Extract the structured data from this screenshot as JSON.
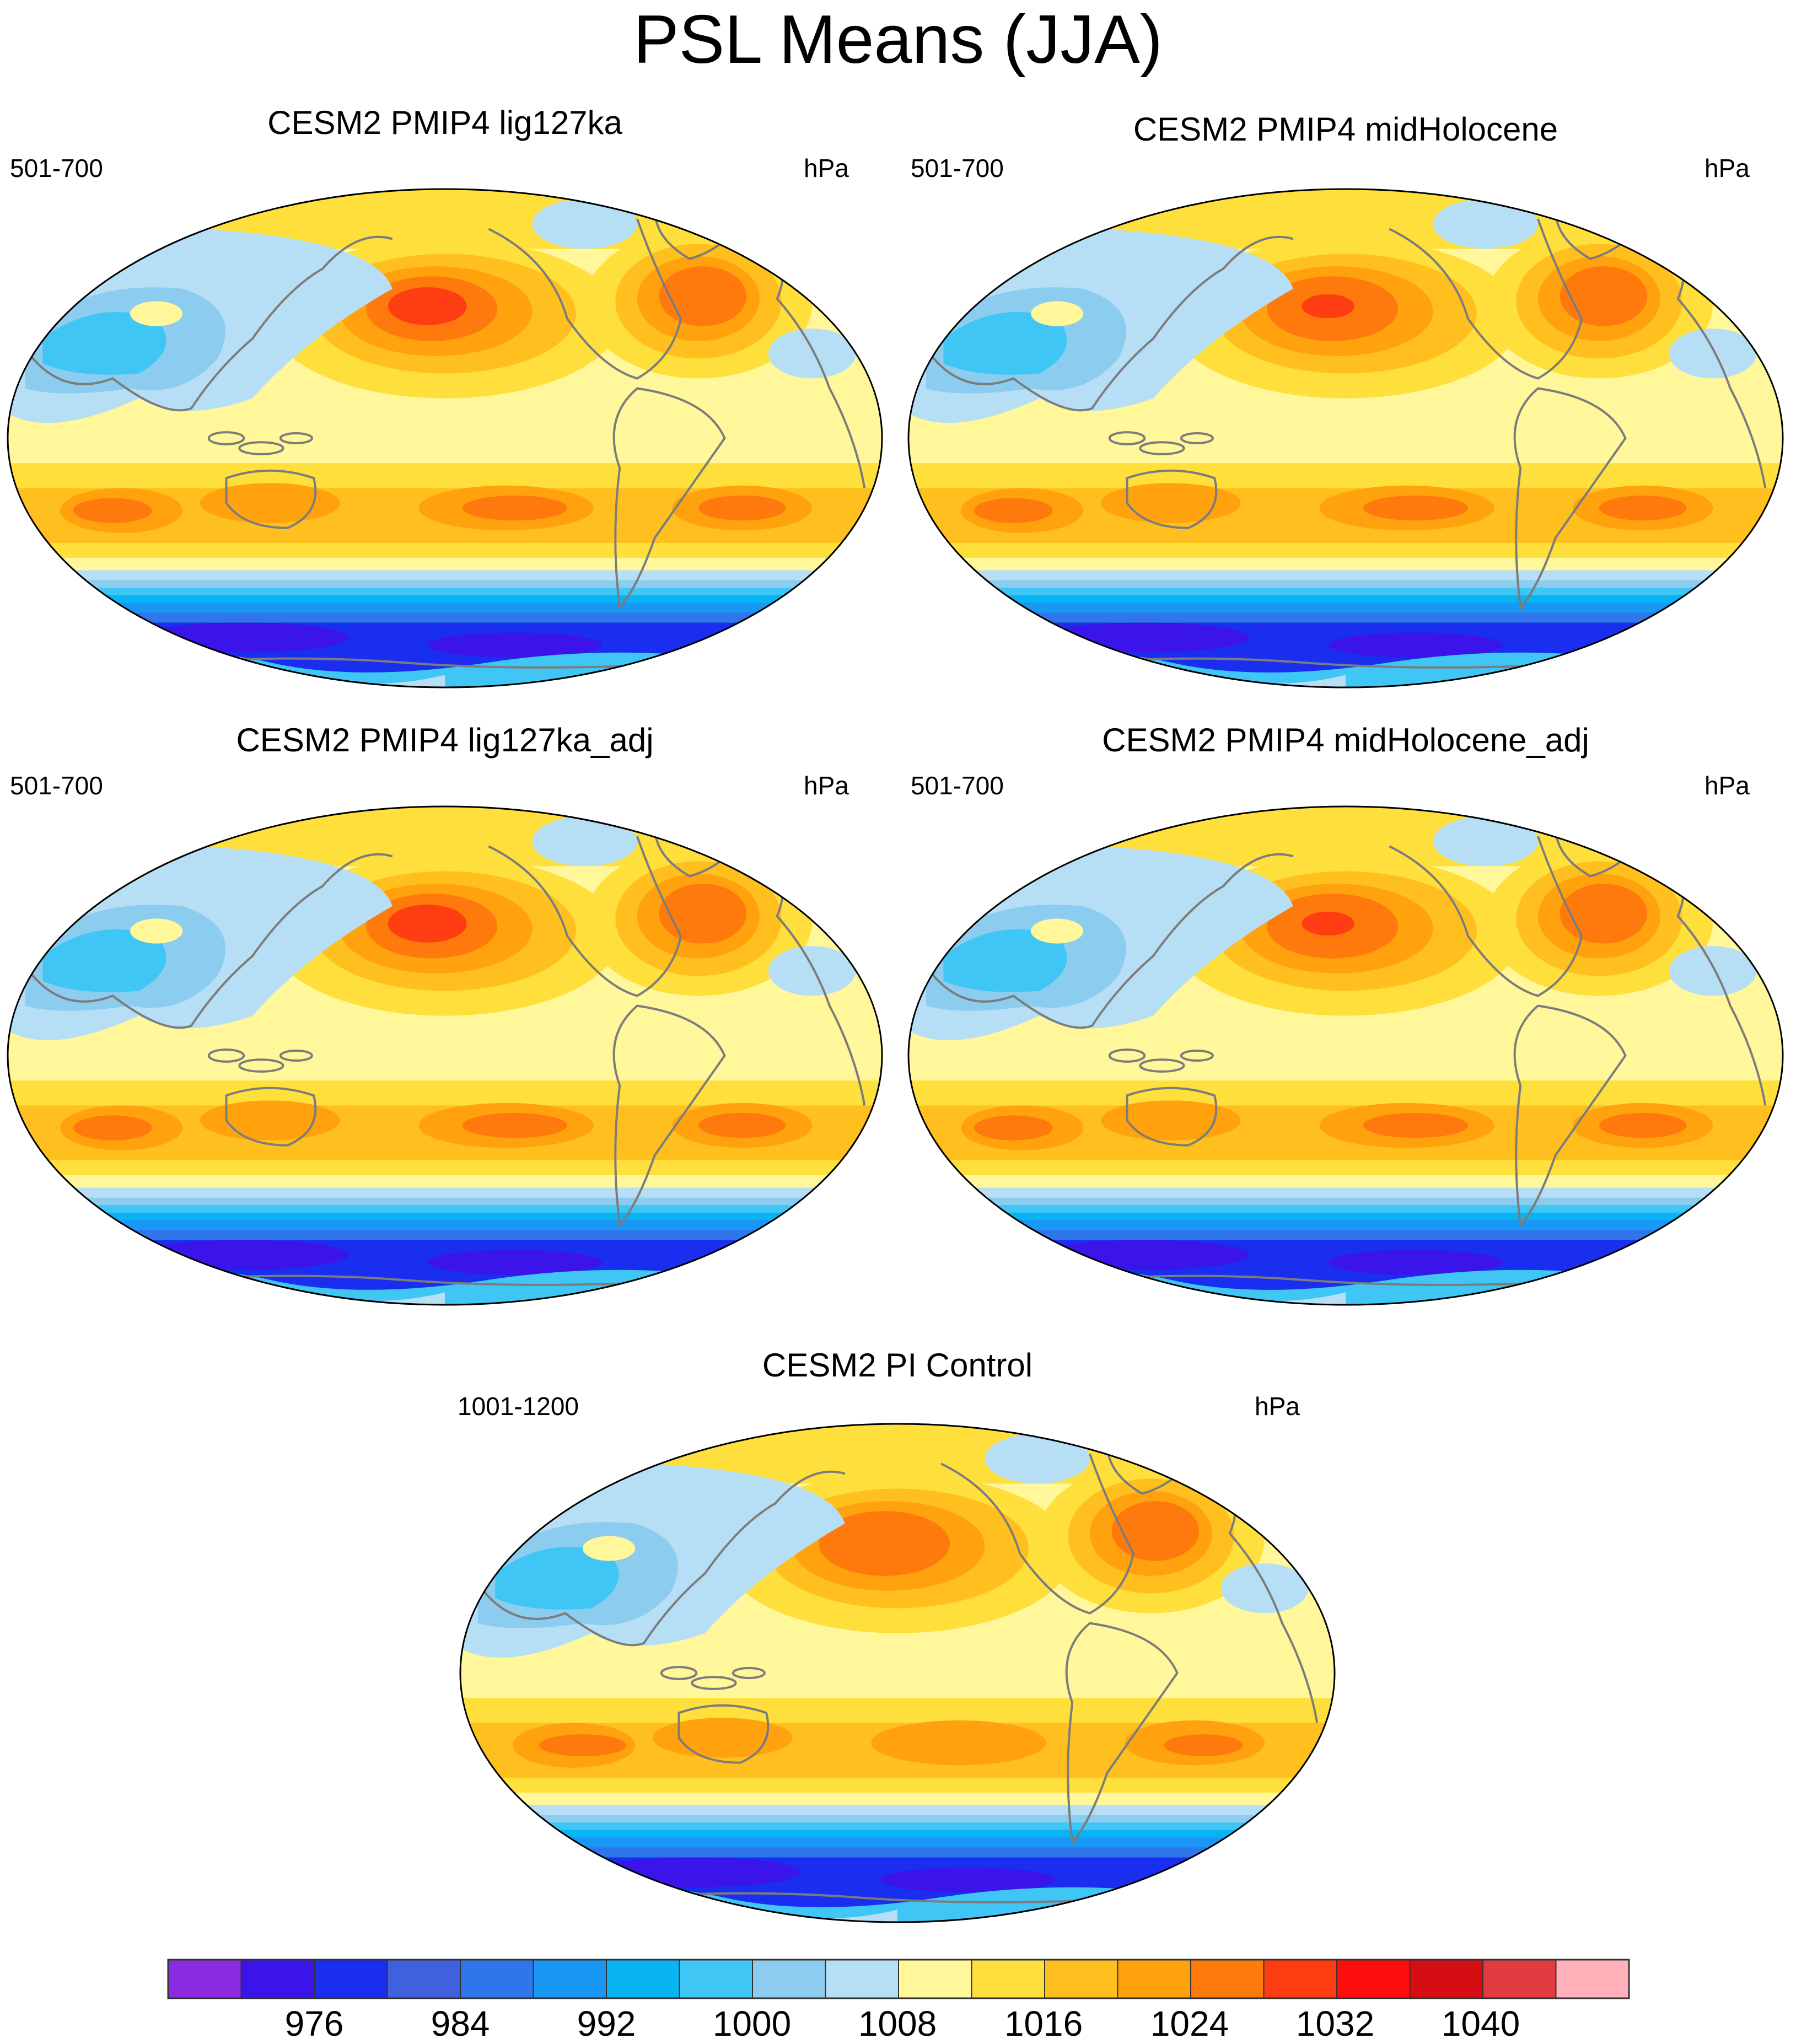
{
  "title": "PSL Means (JJA)",
  "panels": [
    {
      "title": "CESM2 PMIP4 lig127ka",
      "years": "501-700",
      "units": "hPa"
    },
    {
      "title": "CESM2 PMIP4 midHolocene",
      "years": "501-700",
      "units": "hPa"
    },
    {
      "title": "CESM2 PMIP4 lig127ka_adj",
      "years": "501-700",
      "units": "hPa"
    },
    {
      "title": "CESM2 PMIP4 midHolocene_adj",
      "years": "501-700",
      "units": "hPa"
    },
    {
      "title": "CESM2 PI Control",
      "years": "1001-1200",
      "units": "hPa"
    }
  ],
  "colorbar": {
    "colors": [
      "#8a2be2",
      "#3a14e8",
      "#1a2ef0",
      "#3f61de",
      "#2e76ea",
      "#1a96f5",
      "#09b4f5",
      "#3fc6f5",
      "#8cccef",
      "#b6dff5",
      "#fff79a",
      "#ffdf3c",
      "#ffc01f",
      "#ffa20d",
      "#ff7a0c",
      "#ff3d12",
      "#ff0d0d",
      "#d40e12",
      "#e03b3e",
      "#ffb0b8"
    ],
    "tick_labels": [
      "976",
      "984",
      "992",
      "1000",
      "1008",
      "1016",
      "1024",
      "1032",
      "1040"
    ]
  },
  "palette": {
    "coast": "#7c7c7c",
    "border": "#000000"
  }
}
